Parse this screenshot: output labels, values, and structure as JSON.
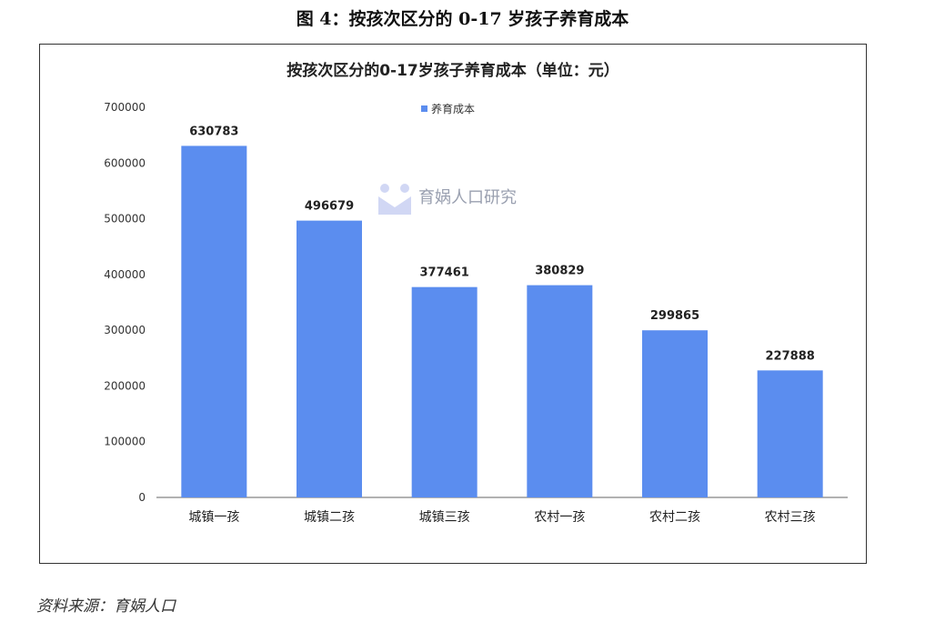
{
  "figure_title": "图 4：按孩次区分的 0-17 岁孩子养育成本",
  "source": "资料来源：育娲人口",
  "watermark_text": "育娲人口研究",
  "colors": {
    "bar": "#5b8def",
    "axis": "#555555",
    "frame": "#333333"
  },
  "chart_data": {
    "type": "bar",
    "title": "按孩次区分的0-17岁孩子养育成本（单位：元）",
    "categories": [
      "城镇一孩",
      "城镇二孩",
      "城镇三孩",
      "农村一孩",
      "农村二孩",
      "农村三孩"
    ],
    "series": [
      {
        "name": "养育成本",
        "values": [
          630783,
          496679,
          377461,
          380829,
          299865,
          227888
        ]
      }
    ],
    "ylim": [
      0,
      700000
    ],
    "yticks": [
      0,
      100000,
      200000,
      300000,
      400000,
      500000,
      600000,
      700000
    ],
    "grid": false,
    "legend": "top-center",
    "data_labels": true
  }
}
